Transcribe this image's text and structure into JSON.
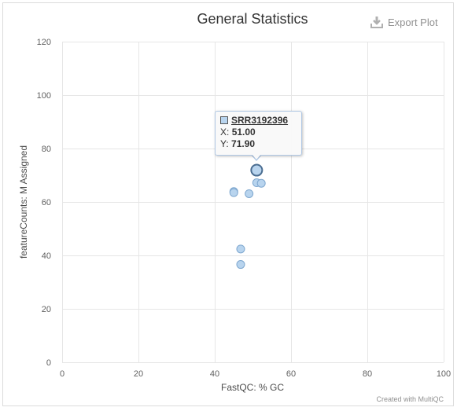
{
  "export": {
    "label": "Export Plot",
    "icon": "download-icon"
  },
  "credits": "Created with MultiQC",
  "tooltip": {
    "sample": "SRR3192396",
    "x_label": "X:",
    "x_value": "51.00",
    "y_label": "Y:",
    "y_value": "71.90"
  },
  "colors": {
    "point_fill": "#b8d4ee",
    "point_stroke": "#7ea7cf",
    "highlight_stroke": "#4a6d91",
    "grid": "#e6e6e6"
  },
  "chart_data": {
    "type": "scatter",
    "title": "General Statistics",
    "xlabel": "FastQC: % GC",
    "ylabel": "featureCounts: M Assigned",
    "xlim": [
      0,
      100
    ],
    "ylim": [
      0,
      120
    ],
    "xticks": [
      0,
      20,
      40,
      60,
      80,
      100
    ],
    "yticks": [
      0,
      20,
      40,
      60,
      80,
      100,
      120
    ],
    "grid": true,
    "legend": "none",
    "highlighted_point": 0,
    "points": [
      {
        "x": 51.0,
        "y": 71.9
      },
      {
        "x": 51.0,
        "y": 67.2
      },
      {
        "x": 52.2,
        "y": 67.0
      },
      {
        "x": 45.0,
        "y": 63.9
      },
      {
        "x": 45.0,
        "y": 63.5
      },
      {
        "x": 49.0,
        "y": 63.1
      },
      {
        "x": 46.8,
        "y": 42.4
      },
      {
        "x": 46.8,
        "y": 36.6
      }
    ]
  }
}
